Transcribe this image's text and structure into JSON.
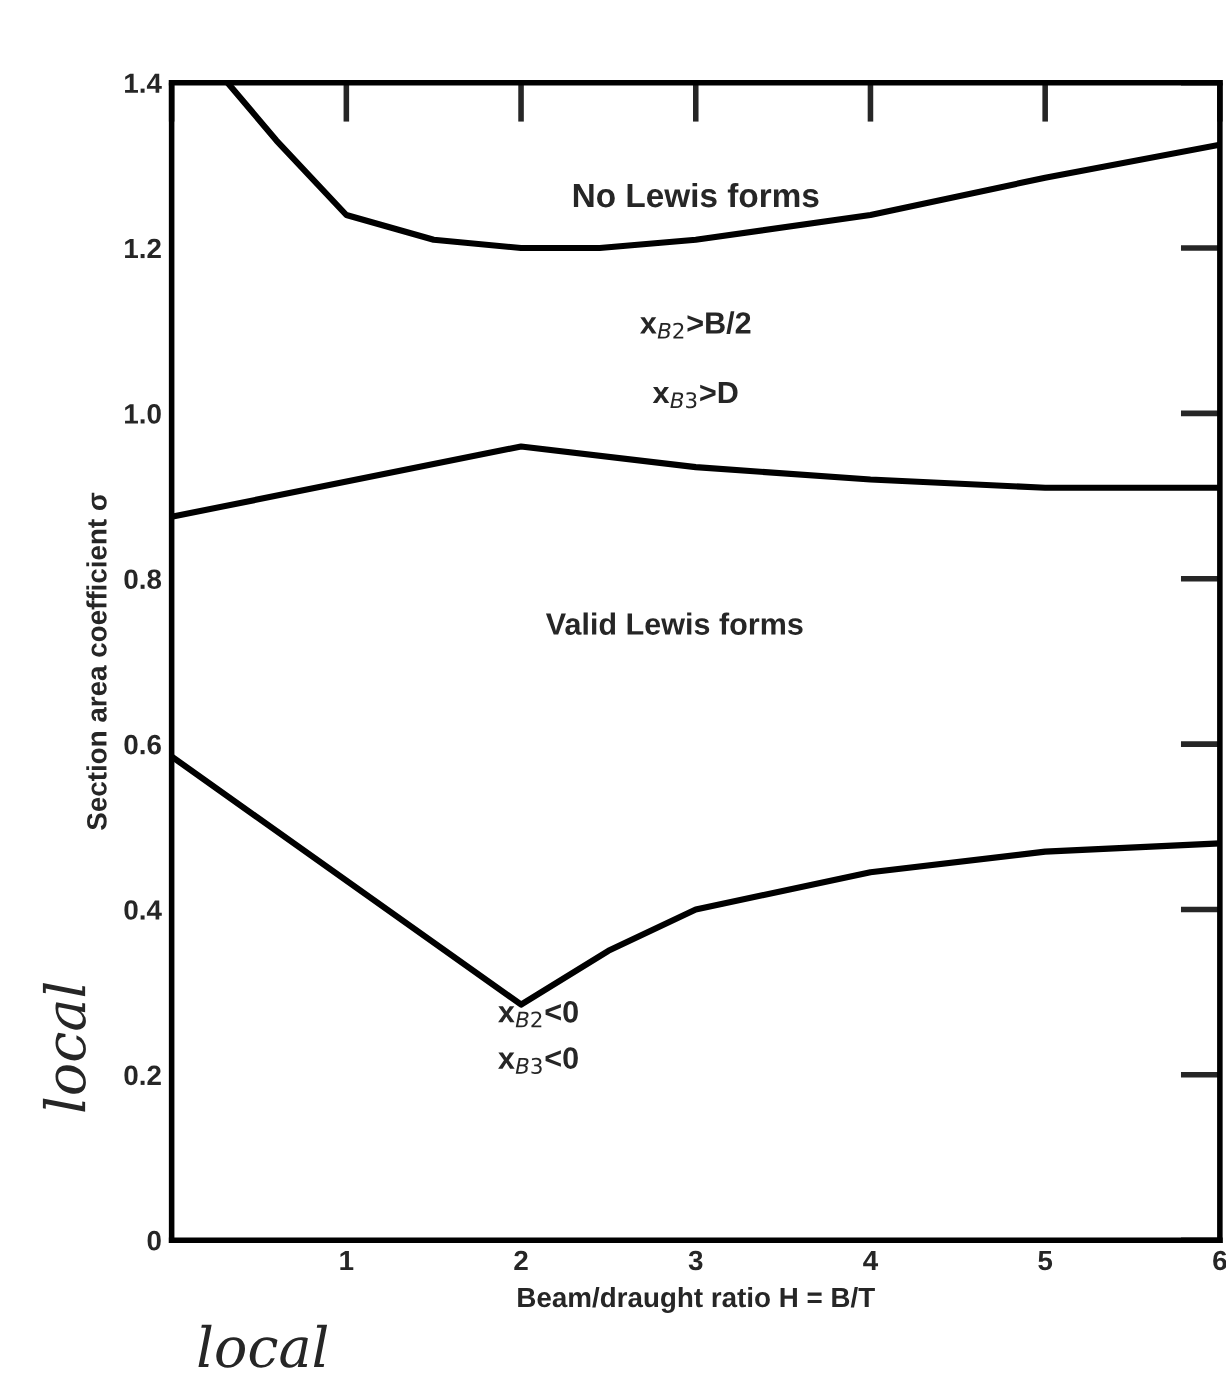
{
  "chart_data": {
    "type": "line",
    "xlabel": "Beam/draught ratio H = B/T",
    "ylabel": "Section area coefficient σ",
    "xlim": [
      0,
      6
    ],
    "ylim": [
      0,
      1.4
    ],
    "xticks": [
      {
        "value": 0,
        "label": null
      },
      1,
      2,
      3,
      4,
      5,
      6
    ],
    "yticks": [
      0,
      0.2,
      0.4,
      0.6,
      0.8,
      {
        "value": 1,
        "label": "1.0"
      },
      1.2,
      1.4
    ],
    "grid": false,
    "legend": false,
    "marker": "none",
    "line_style": "solid",
    "series": [
      {
        "color": "#000000",
        "x": [
          0.32,
          0.6,
          1.0,
          1.5,
          2.0,
          2.45,
          3.0,
          4.0,
          5.0,
          6.0
        ],
        "values": [
          1.4,
          1.33,
          1.24,
          1.21,
          1.2,
          1.2,
          1.21,
          1.24,
          1.285,
          1.325
        ]
      },
      {
        "color": "#000000",
        "x": [
          0,
          2,
          3,
          4,
          5,
          6
        ],
        "values": [
          0.875,
          0.96,
          0.935,
          0.92,
          0.91,
          0.91
        ]
      },
      {
        "color": "#000000",
        "x": [
          0,
          2,
          2.5,
          3,
          4,
          5,
          6
        ],
        "values": [
          0.585,
          0.285,
          0.35,
          0.4,
          0.445,
          0.47,
          0.48
        ]
      }
    ],
    "annotations": [
      "No Lewis forms",
      "x$_{B2}$>B/2",
      "x$_{B3}$>D",
      "Valid Lewis forms",
      "x$_{B2}$<0",
      "x$_{B3}$<0",
      "local",
      "local"
    ]
  }
}
